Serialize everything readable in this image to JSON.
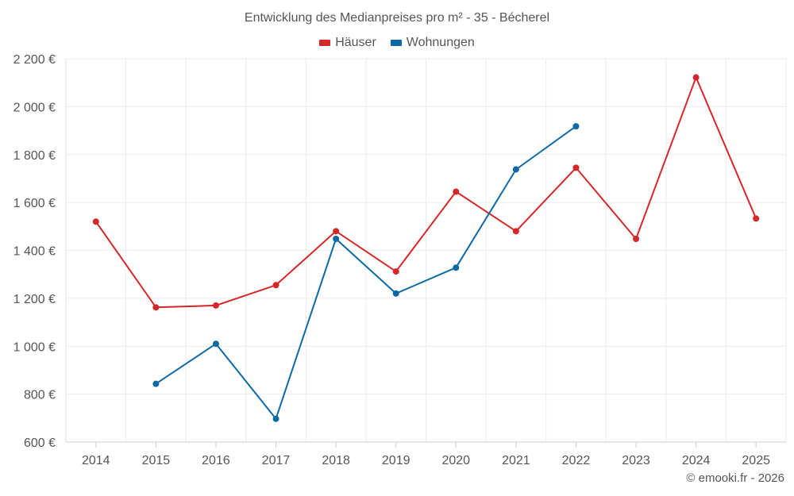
{
  "chart_data": {
    "type": "line",
    "title": "Entwicklung des Medianpreises pro m² - 35 - Bécherel",
    "xlabel": "",
    "ylabel": "",
    "ylim": [
      600,
      2200
    ],
    "y_ticks": [
      600,
      800,
      1000,
      1200,
      1400,
      1600,
      1800,
      2000,
      2200
    ],
    "y_tick_labels": [
      "600 €",
      "800 €",
      "1 000 €",
      "1 200 €",
      "1 400 €",
      "1 600 €",
      "1 800 €",
      "2 000 €",
      "2 200 €"
    ],
    "categories": [
      "2014",
      "2015",
      "2016",
      "2017",
      "2018",
      "2019",
      "2020",
      "2021",
      "2022",
      "2023",
      "2024",
      "2025"
    ],
    "legend_position": "top-center",
    "grid": true,
    "series": [
      {
        "name": "Häuser",
        "color": "#d62728",
        "values": [
          1520,
          1162,
          1170,
          1255,
          1480,
          1312,
          1645,
          1480,
          1745,
          1448,
          2122,
          1533
        ]
      },
      {
        "name": "Wohnungen",
        "color": "#0b6aa2",
        "values": [
          null,
          843,
          1010,
          697,
          1448,
          1220,
          1328,
          1738,
          1918,
          null,
          null,
          null
        ]
      }
    ]
  },
  "credit": "© emooki.fr - 2026"
}
